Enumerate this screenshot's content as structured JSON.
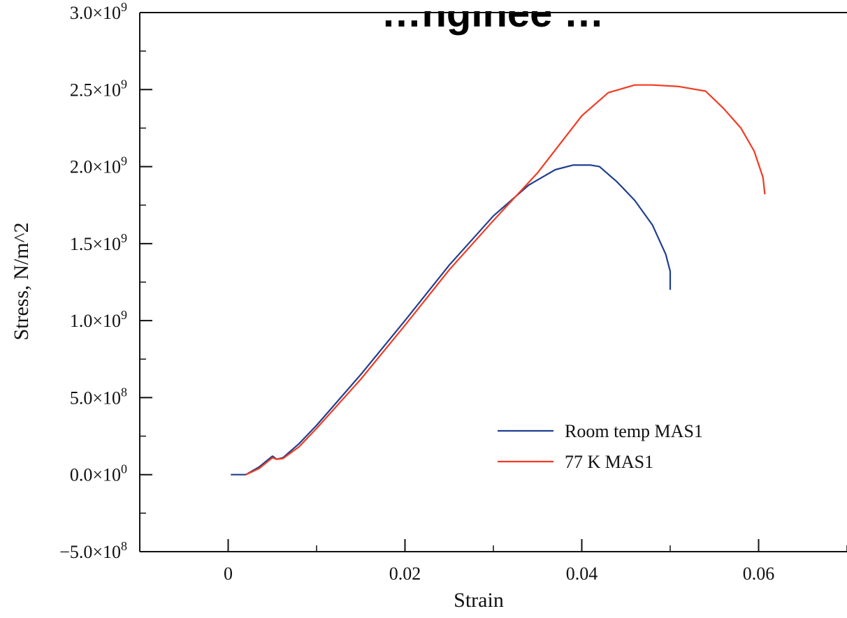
{
  "chart_data": {
    "type": "line",
    "title": "…nginee …",
    "xlabel": "Strain",
    "ylabel": "Stress, N/m^2",
    "xlim": [
      -0.01,
      0.07
    ],
    "ylim": [
      -500000000,
      3000000000
    ],
    "grid": false,
    "legend_position": "bottom-right",
    "x_ticks": [
      {
        "value": 0,
        "label": "0"
      },
      {
        "value": 0.02,
        "label": "0.02"
      },
      {
        "value": 0.04,
        "label": "0.04"
      },
      {
        "value": 0.06,
        "label": "0.06"
      }
    ],
    "y_ticks": [
      {
        "value": -500000000,
        "mant": "−5.0×10",
        "exp": "8"
      },
      {
        "value": 0,
        "mant": "0.0×10",
        "exp": "0"
      },
      {
        "value": 500000000,
        "mant": "5.0×10",
        "exp": "8"
      },
      {
        "value": 1000000000,
        "mant": "1.0×10",
        "exp": "9"
      },
      {
        "value": 1500000000,
        "mant": "1.5×10",
        "exp": "9"
      },
      {
        "value": 2000000000,
        "mant": "2.0×10",
        "exp": "9"
      },
      {
        "value": 2500000000,
        "mant": "2.5×10",
        "exp": "9"
      },
      {
        "value": 3000000000,
        "mant": "3.0×10",
        "exp": "9"
      }
    ],
    "series": [
      {
        "name": "Room temp MAS1",
        "color": "#1f3f8f",
        "points": [
          [
            0.0003,
            0
          ],
          [
            0.002,
            0
          ],
          [
            0.0035,
            50000000
          ],
          [
            0.005,
            120000000
          ],
          [
            0.0055,
            100000000
          ],
          [
            0.0062,
            110000000
          ],
          [
            0.008,
            200000000
          ],
          [
            0.01,
            320000000
          ],
          [
            0.015,
            650000000
          ],
          [
            0.02,
            1000000000
          ],
          [
            0.025,
            1360000000
          ],
          [
            0.03,
            1680000000
          ],
          [
            0.034,
            1880000000
          ],
          [
            0.037,
            1980000000
          ],
          [
            0.039,
            2010000000
          ],
          [
            0.041,
            2010000000
          ],
          [
            0.042,
            2000000000
          ],
          [
            0.044,
            1900000000
          ],
          [
            0.046,
            1780000000
          ],
          [
            0.048,
            1620000000
          ],
          [
            0.0495,
            1430000000
          ],
          [
            0.05,
            1320000000
          ],
          [
            0.05,
            1200000000
          ]
        ]
      },
      {
        "name": "77 K MAS1",
        "color": "#f23a22",
        "points": [
          [
            0.002,
            0
          ],
          [
            0.0035,
            40000000
          ],
          [
            0.005,
            110000000
          ],
          [
            0.0055,
            100000000
          ],
          [
            0.0062,
            105000000
          ],
          [
            0.008,
            180000000
          ],
          [
            0.01,
            300000000
          ],
          [
            0.015,
            620000000
          ],
          [
            0.02,
            970000000
          ],
          [
            0.025,
            1330000000
          ],
          [
            0.03,
            1650000000
          ],
          [
            0.035,
            1960000000
          ],
          [
            0.04,
            2330000000
          ],
          [
            0.043,
            2480000000
          ],
          [
            0.046,
            2530000000
          ],
          [
            0.048,
            2530000000
          ],
          [
            0.051,
            2520000000
          ],
          [
            0.054,
            2490000000
          ],
          [
            0.056,
            2380000000
          ],
          [
            0.058,
            2250000000
          ],
          [
            0.0595,
            2100000000
          ],
          [
            0.0605,
            1930000000
          ],
          [
            0.0607,
            1820000000
          ]
        ]
      }
    ]
  }
}
